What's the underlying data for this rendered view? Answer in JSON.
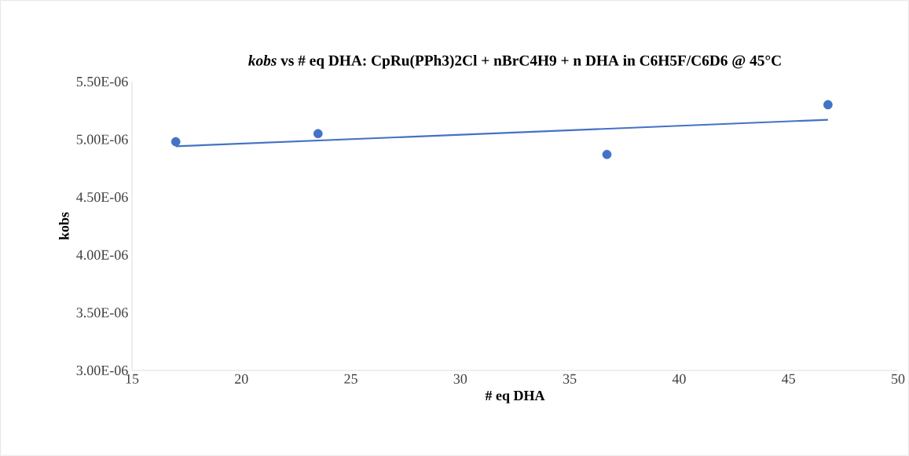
{
  "chart_data": {
    "type": "scatter",
    "title": "*kobs* vs # eq DHA:  CpRu(PPh3)2Cl + nBrC4H9 + n DHA in C6H5F/C6D6 @ 45°C",
    "xlabel": "# eq DHA",
    "ylabel": "kobs",
    "series": [
      {
        "type": "scatter",
        "color": "#4472c4",
        "marker": "circle",
        "x": [
          17,
          23.5,
          36.7,
          46.8
        ],
        "values": [
          4.98e-06,
          5.05e-06,
          4.87e-06,
          5.3e-06
        ]
      },
      {
        "type": "line",
        "color": "#4472c4",
        "x": [
          17,
          46.8
        ],
        "values": [
          4.94e-06,
          5.17e-06
        ]
      }
    ],
    "xlim": [
      15,
      50
    ],
    "xticks": [
      15,
      20,
      25,
      30,
      35,
      40,
      45,
      50
    ],
    "ylim": [
      3e-06,
      5.5e-06
    ],
    "yticks": [
      {
        "value": 3e-06,
        "label": "3.00E-06"
      },
      {
        "value": 3.5e-06,
        "label": "3.50E-06"
      },
      {
        "value": 4e-06,
        "label": "4.00E-06"
      },
      {
        "value": 4.5e-06,
        "label": "4.50E-06"
      },
      {
        "value": 5e-06,
        "label": "5.00E-06"
      },
      {
        "value": 5.5e-06,
        "label": "5.50E-06"
      }
    ],
    "grid": false
  }
}
